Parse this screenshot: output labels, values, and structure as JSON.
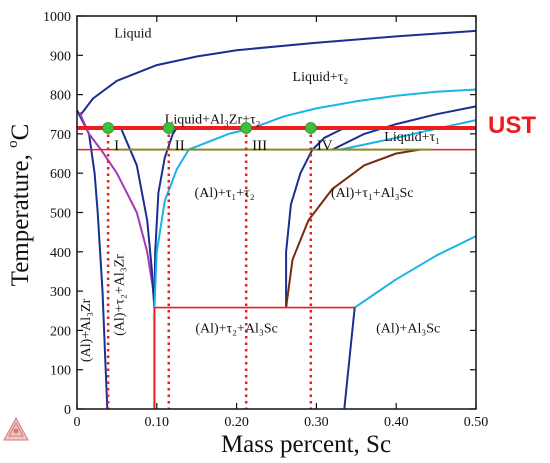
{
  "chart_data": {
    "type": "phase-diagram",
    "xlabel": "Mass percent, Sc",
    "ylabel_main": "Temperature, ",
    "ylabel_sup": "o",
    "ylabel_unit": "C",
    "xlim": [
      0,
      0.5
    ],
    "ylim": [
      0,
      1000
    ],
    "xticks": [
      0,
      0.1,
      0.2,
      0.3,
      0.4,
      0.5
    ],
    "xtick_labels": [
      "0",
      "0.10",
      "0.20",
      "0.30",
      "0.40",
      "0.50"
    ],
    "yticks": [
      0,
      100,
      200,
      300,
      400,
      500,
      600,
      700,
      800,
      900,
      1000
    ],
    "ytick_labels": [
      "0",
      "100",
      "200",
      "300",
      "400",
      "500",
      "600",
      "700",
      "800",
      "900",
      "1000"
    ],
    "colors": {
      "navy": "#1a2f8f",
      "cyan": "#19b4e8",
      "purple": "#a23ab8",
      "brown": "#7a2a10",
      "olive": "#8a8a2a",
      "red": "#ee1c1c",
      "marker": "#3cbf3c",
      "ust": "#ee1c1c"
    },
    "reference_lines": {
      "ust_temperature": 715,
      "lower_red_temperature": 660,
      "red_box": {
        "x1": 0.097,
        "x2": 0.348,
        "y": 258
      },
      "olive_segment": {
        "x1": 0.045,
        "x2": 0.445,
        "y": 660
      }
    },
    "markers": [
      {
        "label": "I",
        "x": 0.039,
        "y": 715
      },
      {
        "label": "II",
        "x": 0.115,
        "y": 715
      },
      {
        "label": "III",
        "x": 0.212,
        "y": 715
      },
      {
        "label": "IV",
        "x": 0.293,
        "y": 715
      }
    ],
    "ust_label": "UST",
    "region_labels": [
      {
        "text": "Liquid",
        "x": 0.07,
        "y": 945
      },
      {
        "text": "Liquid+τ₂",
        "x": 0.305,
        "y": 835
      },
      {
        "text": "Liquid+Al₃Zr+τ₂",
        "x": 0.17,
        "y": 727
      },
      {
        "text": "Liquid+τ₁",
        "x": 0.42,
        "y": 682
      },
      {
        "text": "(Al)+τ₁+τ₂",
        "x": 0.185,
        "y": 540
      },
      {
        "text": "(Al)+τ₁+Al₃Sc",
        "x": 0.37,
        "y": 540
      },
      {
        "text": "(Al)+τ₂+Al₃Sc",
        "x": 0.2,
        "y": 195
      },
      {
        "text": "(Al)+Al₃Sc",
        "x": 0.415,
        "y": 195
      },
      {
        "text": "(Al)+Al₃Zr",
        "x": 0.016,
        "y": 200,
        "rotate": -90
      },
      {
        "text": "(Al)+τ₂+Al₃Zr",
        "x": 0.058,
        "y": 290,
        "rotate": -90
      }
    ],
    "curves": {
      "liquidus_navy": [
        [
          0.005,
          750
        ],
        [
          0.02,
          790
        ],
        [
          0.05,
          835
        ],
        [
          0.1,
          875
        ],
        [
          0.15,
          897
        ],
        [
          0.2,
          913
        ],
        [
          0.3,
          932
        ],
        [
          0.4,
          948
        ],
        [
          0.5,
          962
        ]
      ],
      "cyan_upper": [
        [
          0.22,
          715
        ],
        [
          0.26,
          745
        ],
        [
          0.3,
          765
        ],
        [
          0.35,
          783
        ],
        [
          0.4,
          797
        ],
        [
          0.45,
          807
        ],
        [
          0.5,
          813
        ]
      ],
      "navy_upper_right": [
        [
          0.32,
          660
        ],
        [
          0.36,
          700
        ],
        [
          0.4,
          725
        ],
        [
          0.45,
          750
        ],
        [
          0.5,
          770
        ]
      ],
      "cyan_mid_right": [
        [
          0.33,
          660
        ],
        [
          0.4,
          690
        ],
        [
          0.45,
          713
        ],
        [
          0.5,
          735
        ]
      ],
      "cyan_lower_right": [
        [
          0.348,
          258
        ],
        [
          0.4,
          330
        ],
        [
          0.45,
          390
        ],
        [
          0.5,
          440
        ]
      ],
      "navy_solvus": [
        [
          0.0,
          760
        ],
        [
          0.015,
          700
        ],
        [
          0.022,
          600
        ],
        [
          0.026,
          500
        ],
        [
          0.029,
          400
        ],
        [
          0.032,
          300
        ],
        [
          0.034,
          200
        ],
        [
          0.036,
          100
        ],
        [
          0.038,
          0
        ]
      ],
      "purple_left": [
        [
          0.003,
          755
        ],
        [
          0.015,
          700
        ],
        [
          0.03,
          660
        ],
        [
          0.05,
          600
        ],
        [
          0.075,
          500
        ],
        [
          0.088,
          400
        ],
        [
          0.095,
          310
        ],
        [
          0.097,
          258
        ],
        [
          0.097,
          0
        ]
      ],
      "navy_left_dip": [
        [
          0.097,
          258
        ],
        [
          0.098,
          400
        ],
        [
          0.102,
          550
        ],
        [
          0.11,
          640
        ],
        [
          0.12,
          700
        ],
        [
          0.125,
          715
        ]
      ],
      "navy_v_left": [
        [
          0.055,
          715
        ],
        [
          0.075,
          620
        ],
        [
          0.088,
          480
        ],
        [
          0.094,
          350
        ],
        [
          0.097,
          258
        ]
      ],
      "cyan_v_right": [
        [
          0.097,
          258
        ],
        [
          0.1,
          400
        ],
        [
          0.11,
          530
        ],
        [
          0.125,
          610
        ],
        [
          0.14,
          660
        ],
        [
          0.19,
          700
        ],
        [
          0.22,
          715
        ]
      ],
      "navy_iv_curve": [
        [
          0.262,
          258
        ],
        [
          0.262,
          400
        ],
        [
          0.268,
          520
        ],
        [
          0.28,
          600
        ],
        [
          0.295,
          660
        ],
        [
          0.31,
          690
        ],
        [
          0.325,
          705
        ],
        [
          0.335,
          715
        ]
      ],
      "brown_curve": [
        [
          0.262,
          258
        ],
        [
          0.27,
          380
        ],
        [
          0.29,
          480
        ],
        [
          0.32,
          560
        ],
        [
          0.36,
          620
        ],
        [
          0.4,
          650
        ],
        [
          0.43,
          660
        ]
      ],
      "navy_lower_right": [
        [
          0.335,
          0
        ],
        [
          0.348,
          258
        ]
      ]
    },
    "dotted_verticals": [
      0.039,
      0.115,
      0.212,
      0.293
    ]
  }
}
